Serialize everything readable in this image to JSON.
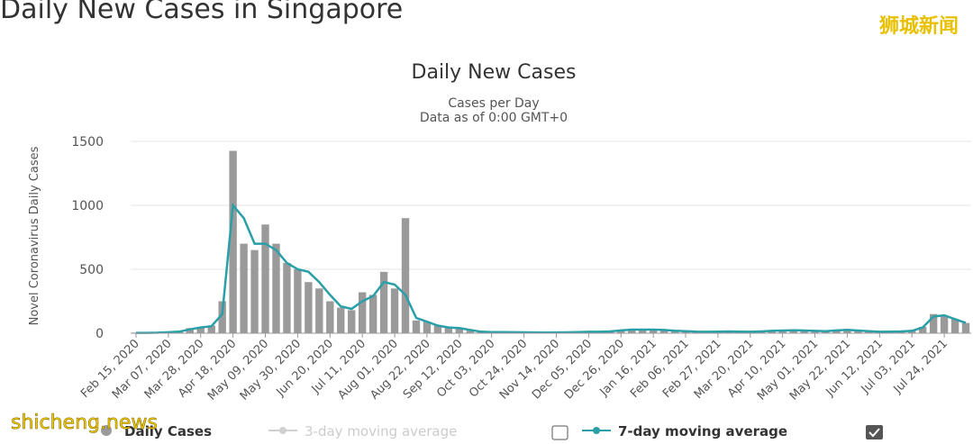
{
  "page_title": "Daily New Cases in Singapore",
  "watermark_top": "狮城新闻",
  "watermark_bottom": "shicheng.news",
  "chart_data": {
    "type": "bar-line",
    "title": "Daily New Cases",
    "subtitle": [
      "Cases per Day",
      "Data as of 0:00 GMT+0"
    ],
    "y_label": "Novel Coronavirus Daily Cases",
    "categories": [
      "Feb 15, 2020",
      null,
      null,
      "Mar 07, 2020",
      null,
      null,
      "Mar 28, 2020",
      null,
      null,
      "Apr 18, 2020",
      null,
      null,
      "May 09, 2020",
      null,
      null,
      "May 30, 2020",
      null,
      null,
      "Jun 20, 2020",
      null,
      null,
      "Jul 11, 2020",
      null,
      null,
      "Aug 01, 2020",
      null,
      null,
      "Aug 22, 2020",
      null,
      null,
      "Sep 12, 2020",
      null,
      null,
      "Oct 03, 2020",
      null,
      null,
      "Oct 24, 2020",
      null,
      null,
      "Nov 14, 2020",
      null,
      null,
      "Dec 05, 2020",
      null,
      null,
      "Dec 26, 2020",
      null,
      null,
      "Jan 16, 2021",
      null,
      null,
      "Feb 06, 2021",
      null,
      null,
      "Feb 27, 2021",
      null,
      null,
      "Mar 20, 2021",
      null,
      null,
      "Apr 10, 2021",
      null,
      null,
      "May 01, 2021",
      null,
      null,
      "May 22, 2021",
      null,
      null,
      "Jun 12, 2021",
      null,
      null,
      "Jul 03, 2021",
      null,
      null,
      "Jul 24, 2021",
      null,
      null
    ],
    "series": [
      {
        "name": "Daily Cases",
        "color": "#9a9a9a",
        "values": [
          5,
          3,
          5,
          10,
          15,
          40,
          50,
          60,
          250,
          1426,
          700,
          650,
          850,
          700,
          550,
          500,
          400,
          350,
          250,
          200,
          180,
          320,
          300,
          480,
          350,
          900,
          100,
          90,
          60,
          50,
          40,
          20,
          10,
          8,
          10,
          8,
          6,
          5,
          5,
          6,
          8,
          10,
          12,
          10,
          15,
          25,
          30,
          28,
          30,
          25,
          20,
          15,
          12,
          10,
          12,
          15,
          12,
          10,
          15,
          20,
          22,
          25,
          20,
          18,
          15,
          25,
          30,
          20,
          15,
          10,
          12,
          15,
          20,
          50,
          150,
          130,
          110,
          80
        ]
      },
      {
        "name": "7-day moving average",
        "color": "#2a9fa8",
        "values": [
          3,
          3,
          4,
          8,
          12,
          30,
          45,
          55,
          150,
          1000,
          900,
          700,
          700,
          650,
          550,
          500,
          480,
          400,
          300,
          210,
          190,
          250,
          290,
          400,
          380,
          300,
          120,
          90,
          60,
          45,
          40,
          25,
          12,
          9,
          9,
          8,
          7,
          6,
          5,
          6,
          7,
          9,
          11,
          11,
          14,
          22,
          28,
          28,
          28,
          25,
          20,
          16,
          13,
          11,
          12,
          14,
          13,
          11,
          14,
          18,
          21,
          23,
          21,
          18,
          16,
          22,
          27,
          21,
          16,
          11,
          12,
          14,
          18,
          45,
          130,
          140,
          110,
          80
        ]
      }
    ],
    "hidden_series": [
      {
        "name": "3-day moving average",
        "color": "#c8c8c8"
      }
    ],
    "ylim": [
      0,
      1500
    ],
    "yticks": [
      0,
      500,
      1000,
      1500
    ],
    "grid": true
  }
}
